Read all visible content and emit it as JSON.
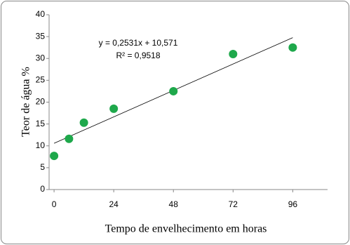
{
  "chart_data": {
    "type": "scatter",
    "x": [
      0,
      6,
      12,
      24,
      48,
      72,
      96
    ],
    "values": [
      7.7,
      11.6,
      15.3,
      18.5,
      22.5,
      31.0,
      32.5
    ],
    "color": "#1ea84b",
    "trendline": true,
    "annotations": [
      "y = 0,2531x + 10,571",
      "R² = 0,9518"
    ],
    "xlabel": "Tempo de envelhecimento em horas",
    "ylabel": "Teor de água %",
    "xlim": [
      -2,
      110
    ],
    "xticks": [
      0,
      24,
      48,
      72,
      96
    ],
    "ylim": [
      0,
      40
    ],
    "yticks": [
      0,
      5,
      10,
      15,
      20,
      25,
      30,
      35,
      40
    ]
  }
}
